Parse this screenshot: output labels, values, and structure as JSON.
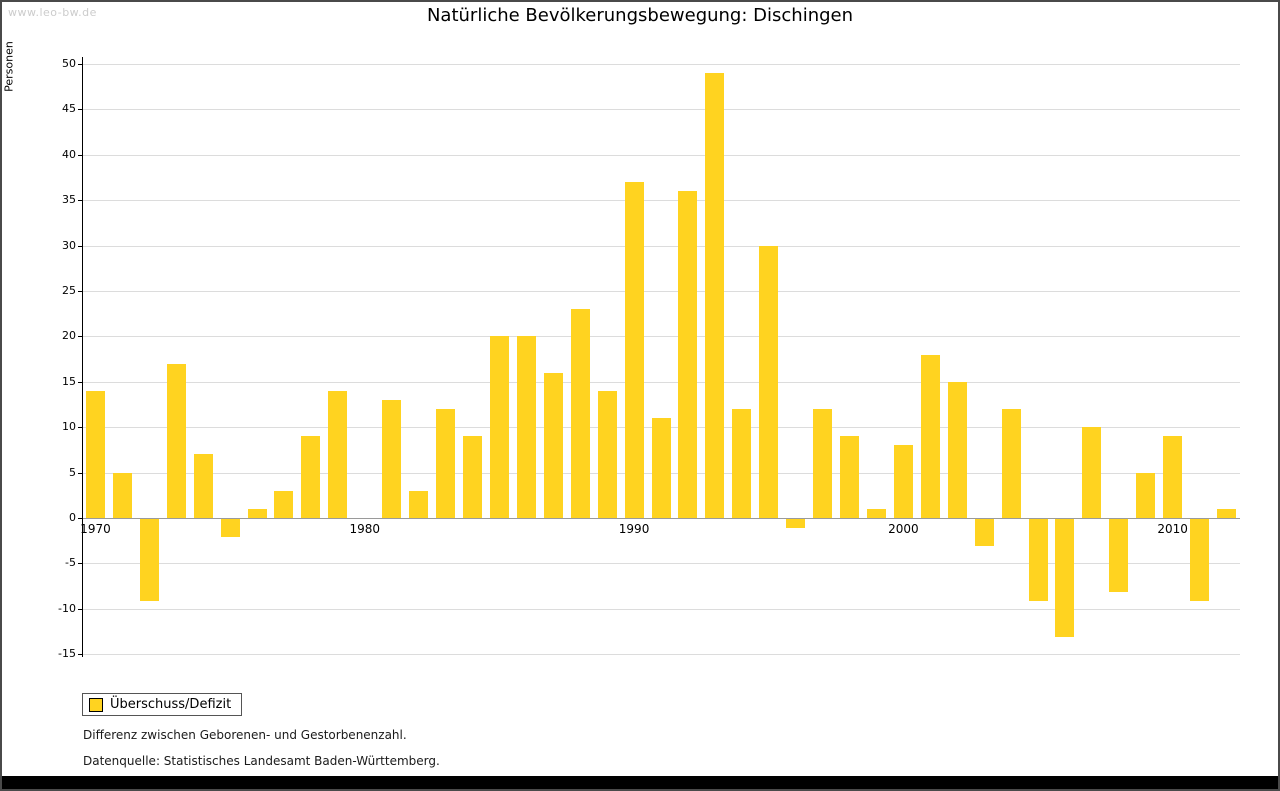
{
  "watermark": "www.leo-bw.de",
  "title": "Natürliche Bevölkerungsbewegung: Dischingen",
  "footnotes": {
    "line1": "Differenz zwischen Geborenen- und Gestorbenenzahl.",
    "line2": "Datenquelle: Statistisches Landesamt Baden-Württemberg."
  },
  "legend": {
    "label": "Überschuss/Defizit",
    "swatch_color": "#FFD320"
  },
  "chart_data": {
    "type": "bar",
    "title": "Natürliche Bevölkerungsbewegung: Dischingen",
    "xlabel": "",
    "ylabel": "Personen",
    "ylim": [
      -15,
      50
    ],
    "ytick_step": 5,
    "grid": true,
    "legend_position": "bottom-left",
    "bar_color": "#FFD320",
    "x_tick_labels": [
      "1970",
      "1980",
      "1990",
      "2000",
      "2010"
    ],
    "x_tick_years": [
      1970,
      1980,
      1990,
      2000,
      2010
    ],
    "categories": [
      1970,
      1971,
      1972,
      1973,
      1974,
      1975,
      1976,
      1977,
      1978,
      1979,
      1980,
      1981,
      1982,
      1983,
      1984,
      1985,
      1986,
      1987,
      1988,
      1989,
      1990,
      1991,
      1992,
      1993,
      1994,
      1995,
      1996,
      1997,
      1998,
      1999,
      2000,
      2001,
      2002,
      2003,
      2004,
      2005,
      2006,
      2007,
      2008,
      2009,
      2010,
      2011,
      2012
    ],
    "series": [
      {
        "name": "Überschuss/Defizit",
        "values": [
          14,
          5,
          -9,
          17,
          7,
          -2,
          1,
          3,
          9,
          14,
          0,
          13,
          3,
          12,
          9,
          20,
          20,
          16,
          23,
          14,
          37,
          11,
          36,
          49,
          12,
          30,
          -1,
          12,
          9,
          1,
          8,
          18,
          15,
          -3,
          12,
          -9,
          -13,
          10,
          -8,
          5,
          9,
          -9,
          1
        ]
      }
    ]
  }
}
